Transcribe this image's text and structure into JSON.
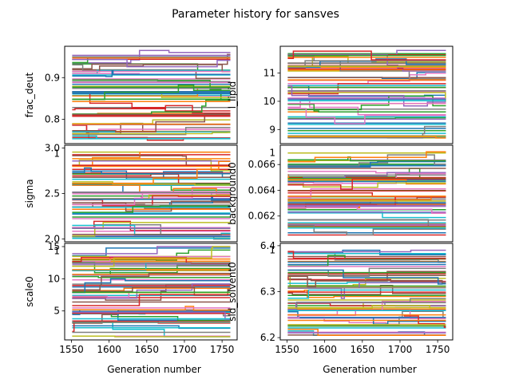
{
  "figure": {
    "title": "Parameter history for sansves",
    "xlabel": "Generation number"
  },
  "palette": [
    "#1f77b4",
    "#ff7f0e",
    "#2ca02c",
    "#d62728",
    "#9467bd",
    "#8c564b",
    "#e377c2",
    "#7f7f7f",
    "#bcbd22",
    "#17becf"
  ],
  "chart_data": [
    {
      "type": "line",
      "ylabel": "frac_deut",
      "xlim": [
        1541,
        1770
      ],
      "ylim": [
        0.742,
        0.975
      ],
      "xticks": [],
      "xtick_labels": [],
      "yticks": [
        0.8,
        0.9
      ],
      "ytick_labels": [
        "0.8",
        "0.9"
      ],
      "stray_ytick": null,
      "series_count": 64,
      "value_range": [
        0.75,
        0.965
      ],
      "x_range": [
        1551,
        1761
      ]
    },
    {
      "type": "line",
      "ylabel": "l_lipid",
      "xlim": [
        1541,
        1770
      ],
      "ylim": [
        8.5,
        11.95
      ],
      "xticks": [],
      "xtick_labels": [],
      "yticks": [
        9,
        10,
        11
      ],
      "ytick_labels": [
        "9",
        "10",
        "11"
      ],
      "stray_ytick": null,
      "series_count": 64,
      "value_range": [
        8.7,
        11.8
      ],
      "x_range": [
        1551,
        1761
      ]
    },
    {
      "type": "line",
      "ylabel": "sigma",
      "xlim": [
        1541,
        1770
      ],
      "ylim": [
        1.97,
        3.03
      ],
      "xticks": [],
      "xtick_labels": [],
      "yticks": [
        2.0,
        2.5,
        3.0
      ],
      "ytick_labels": [
        "2.0",
        "2.5",
        "3.0"
      ],
      "stray_ytick": {
        "value": 2.94,
        "label": "1"
      },
      "series_count": 64,
      "value_range": [
        2.0,
        2.98
      ],
      "x_range": [
        1551,
        1761
      ]
    },
    {
      "type": "line",
      "ylabel": "background0",
      "xlim": [
        1541,
        1770
      ],
      "ylim": [
        0.06,
        0.0675
      ],
      "xticks": [],
      "xtick_labels": [],
      "yticks": [
        0.062,
        0.064,
        0.066
      ],
      "ytick_labels": [
        "0.062",
        "0.064",
        "0.066"
      ],
      "stray_ytick": {
        "value": 0.0669,
        "label": "1"
      },
      "series_count": 64,
      "value_range": [
        0.0605,
        0.067
      ],
      "x_range": [
        1551,
        1761
      ]
    },
    {
      "type": "line",
      "ylabel": "scale0",
      "xlim": [
        1541,
        1770
      ],
      "ylim": [
        0.5,
        15.5
      ],
      "xticks": [
        1550,
        1600,
        1650,
        1700,
        1750
      ],
      "xtick_labels": [
        "1550",
        "1600",
        "1650",
        "1700",
        "1750"
      ],
      "yticks": [
        5,
        10,
        15
      ],
      "ytick_labels": [
        "5",
        "10",
        "15"
      ],
      "stray_ytick": {
        "value": 14.3,
        "label": "1"
      },
      "series_count": 64,
      "value_range": [
        1.0,
        15.0
      ],
      "x_range": [
        1551,
        1761
      ]
    },
    {
      "type": "line",
      "ylabel": "sld_solvent0",
      "xlim": [
        1541,
        1770
      ],
      "ylim": [
        6.195,
        6.405
      ],
      "xticks": [
        1550,
        1600,
        1650,
        1700,
        1750
      ],
      "xtick_labels": [
        "1550",
        "1600",
        "1650",
        "1700",
        "1750"
      ],
      "yticks": [
        6.2,
        6.3,
        6.4
      ],
      "ytick_labels": [
        "6.2",
        "6.3",
        "6.4"
      ],
      "stray_ytick": {
        "value": 6.39,
        "label": "1"
      },
      "series_count": 64,
      "value_range": [
        6.205,
        6.39
      ],
      "x_range": [
        1551,
        1761
      ]
    }
  ]
}
